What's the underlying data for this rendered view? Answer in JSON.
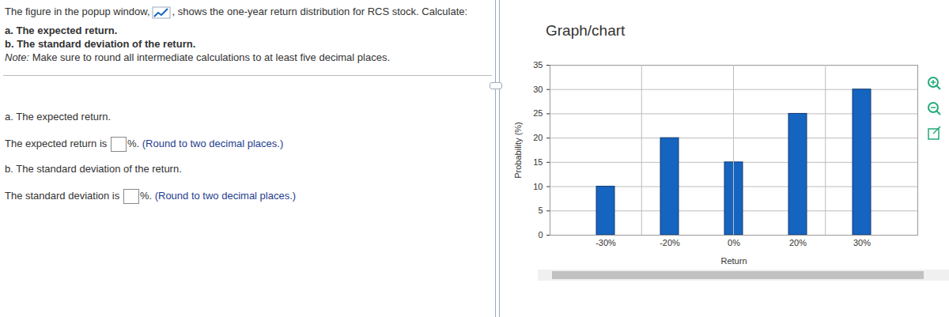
{
  "question": {
    "intro_before_icon": "The figure in the popup window,",
    "intro_after_icon": ", shows the one-year return distribution for RCS stock. Calculate:",
    "items": [
      "a. The expected return.",
      "b. The standard deviation of the return."
    ],
    "note_label": "Note:",
    "note": " Make sure to round all intermediate calculations to at least five decimal places."
  },
  "answers": [
    {
      "heading": "a. The expected return.",
      "prompt": "The expected return is",
      "unit": "%.",
      "hint": "(Round to two decimal places.)"
    },
    {
      "heading": "b. The standard deviation of the return.",
      "prompt": "The standard deviation is",
      "unit": "%.",
      "hint": "(Round to two decimal places.)"
    }
  ],
  "panel_title": "Graph/chart",
  "chart_data": {
    "type": "bar",
    "categories": [
      "-30%",
      "-20%",
      "0%",
      "20%",
      "30%"
    ],
    "values": [
      10,
      20,
      15,
      25,
      30
    ],
    "color": "#1565c0",
    "xlabel": "Return",
    "ylabel": "Probability (%)",
    "ylim": [
      0,
      35
    ],
    "yticks": [
      0,
      5,
      10,
      15,
      20,
      25,
      30,
      35
    ],
    "grid": true
  }
}
